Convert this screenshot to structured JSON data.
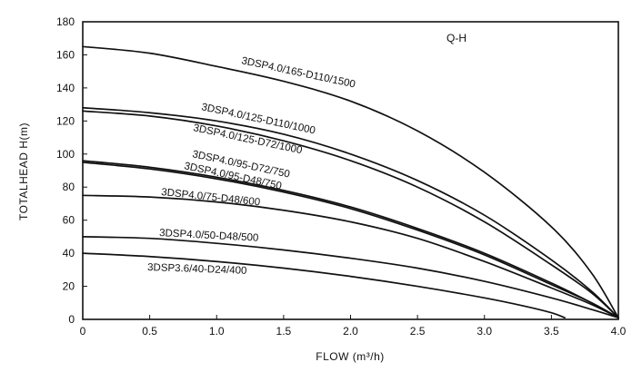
{
  "chart_data": {
    "type": "line",
    "legend_tag": "Q-H",
    "xlabel": "FLOW (m³/h)",
    "ylabel": "TOTALHEAD  H(m)",
    "xlim": [
      0,
      4.0
    ],
    "ylim": [
      0,
      180
    ],
    "x_ticks": [
      "0",
      "0.5",
      "1.0",
      "1.5",
      "2.0",
      "2.5",
      "3.0",
      "3.5",
      "4.0"
    ],
    "x_tick_values": [
      0,
      0.5,
      1.0,
      1.5,
      2.0,
      2.5,
      3.0,
      3.5,
      4.0
    ],
    "y_ticks": [
      "0",
      "20",
      "40",
      "60",
      "80",
      "100",
      "120",
      "140",
      "160",
      "180"
    ],
    "y_tick_values": [
      0,
      20,
      40,
      60,
      80,
      100,
      120,
      140,
      160,
      180
    ],
    "grid": false,
    "series": [
      {
        "name": "3DSP4.0/165-D110/1500",
        "x": [
          0,
          0.5,
          1.0,
          1.5,
          2.0,
          2.5,
          3.0,
          3.5,
          3.8,
          4.0
        ],
        "y": [
          165,
          161,
          153,
          144,
          132,
          114,
          89,
          56,
          28,
          1
        ]
      },
      {
        "name": "3DSP4.0/125-D110/1000",
        "x": [
          0,
          0.5,
          1.0,
          1.5,
          2.0,
          2.5,
          3.0,
          3.5,
          3.8,
          4.0
        ],
        "y": [
          128,
          125,
          120,
          112,
          100,
          84,
          63,
          36,
          17,
          1
        ]
      },
      {
        "name": "3DSP4.0/125-D72/1000",
        "x": [
          0,
          0.5,
          1.0,
          1.5,
          2.0,
          2.5,
          3.0,
          3.5,
          3.8,
          4.0
        ],
        "y": [
          126,
          123,
          117,
          108,
          96,
          80,
          59,
          33,
          16,
          1
        ]
      },
      {
        "name": "3DSP4.0/95-D72/750",
        "x": [
          0,
          0.5,
          1.0,
          1.5,
          2.0,
          2.5,
          3.0,
          3.5,
          3.8,
          4.0
        ],
        "y": [
          96,
          92,
          86,
          78,
          68,
          55,
          40,
          22,
          10,
          1
        ]
      },
      {
        "name": "3DSP4.0/95-D48/750",
        "x": [
          0,
          0.5,
          1.0,
          1.5,
          2.0,
          2.5,
          3.0,
          3.5,
          3.8,
          4.0
        ],
        "y": [
          95,
          91,
          85,
          77,
          67,
          54,
          39,
          21,
          10,
          1
        ]
      },
      {
        "name": "3DSP4.0/75-D48/600",
        "x": [
          0,
          0.5,
          1.0,
          1.5,
          2.0,
          2.5,
          3.0,
          3.5,
          3.8,
          4.0
        ],
        "y": [
          75,
          74,
          71,
          66,
          59,
          49,
          35,
          19,
          9,
          1
        ]
      },
      {
        "name": "3DSP4.0/50-D48/500",
        "x": [
          0,
          0.5,
          1.0,
          1.5,
          2.0,
          2.5,
          3.0,
          3.5,
          3.8,
          4.0
        ],
        "y": [
          50,
          49,
          46,
          42,
          37,
          31,
          23,
          13,
          6,
          1
        ]
      },
      {
        "name": "3DSP3.6/40-D24/400",
        "x": [
          0,
          0.5,
          1.0,
          1.5,
          2.0,
          2.5,
          3.0,
          3.3,
          3.5,
          3.6
        ],
        "y": [
          40,
          38,
          35,
          31,
          26,
          20,
          13,
          8,
          4,
          1
        ]
      }
    ]
  }
}
